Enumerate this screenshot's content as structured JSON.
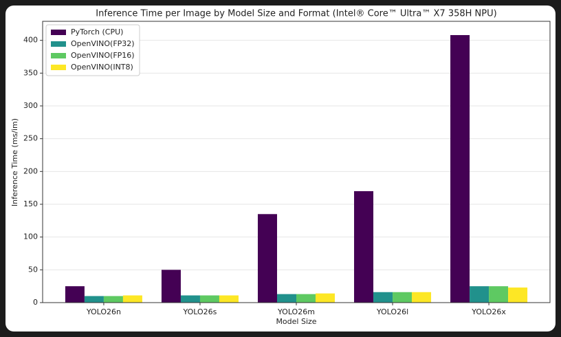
{
  "chart_data": {
    "type": "bar",
    "title": "Inference Time per Image by Model Size and Format (Intel® Core™ Ultra™ X7 358H NPU)",
    "x_label": "Model Size",
    "y_label": "Inference Time (ms/im)",
    "categories": [
      "YOLO26n",
      "YOLO26s",
      "YOLO26m",
      "YOLO26l",
      "YOLO26x"
    ],
    "series": [
      {
        "name": "PyTorch (CPU)",
        "color": "#440154",
        "values": [
          25,
          50,
          135,
          170,
          408
        ]
      },
      {
        "name": "OpenVINO(FP32)",
        "color": "#21918c",
        "values": [
          10,
          11,
          13,
          16,
          25
        ]
      },
      {
        "name": "OpenVINO(FP16)",
        "color": "#5ec962",
        "values": [
          10,
          11,
          13,
          16,
          25
        ]
      },
      {
        "name": "OpenVINO(INT8)",
        "color": "#fde725",
        "values": [
          11,
          11,
          14,
          16,
          23
        ]
      }
    ],
    "ylim": [
      0,
      429
    ],
    "yticks": [
      0,
      50,
      100,
      150,
      200,
      250,
      300,
      350,
      400
    ],
    "grid": true,
    "legend": "upper-left"
  }
}
